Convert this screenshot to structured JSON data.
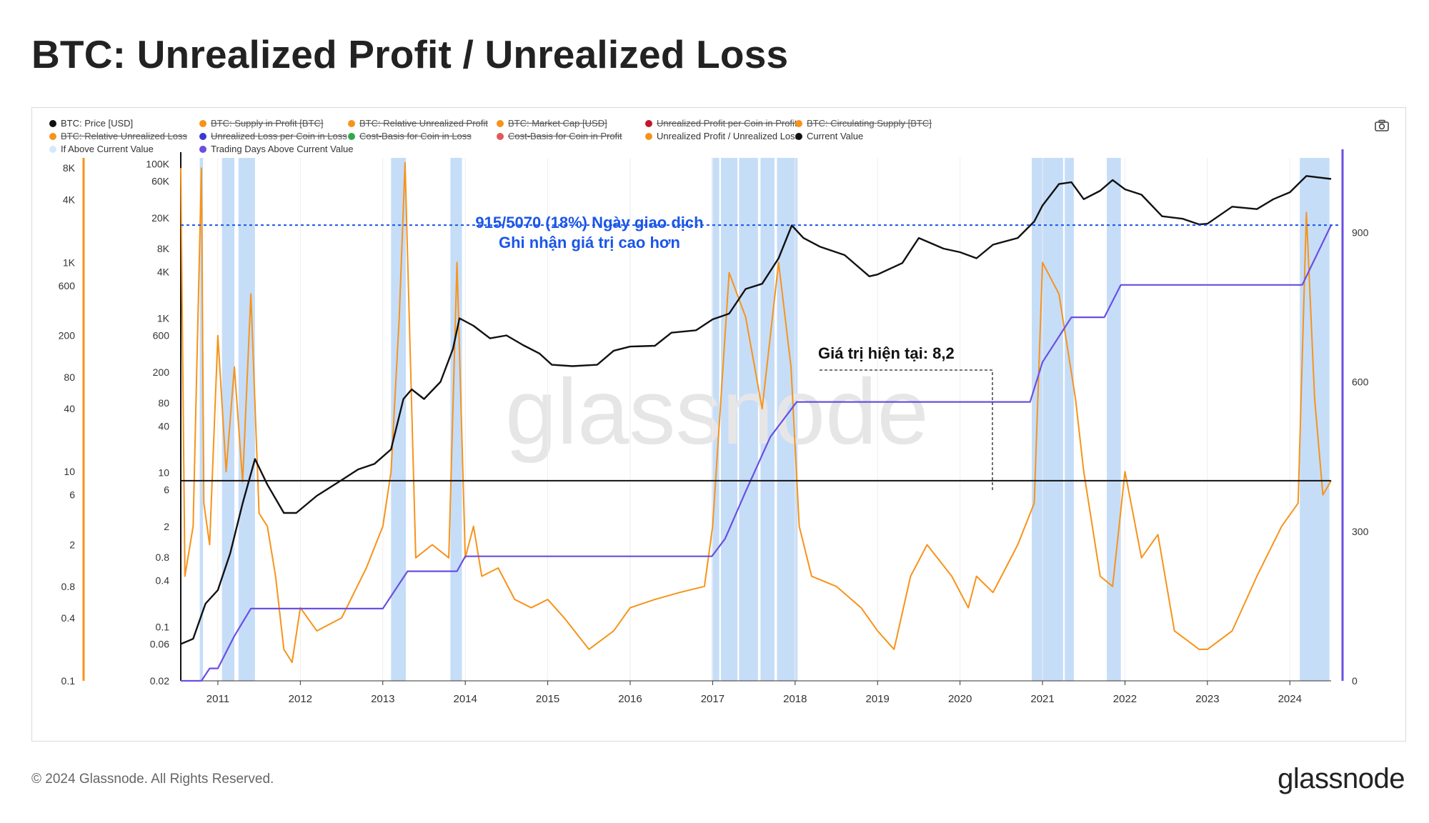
{
  "title": "BTC: Unrealized Profit / Unrealized Loss",
  "legend": [
    {
      "label": "BTC: Price [USD]",
      "color": "#111111",
      "off": false
    },
    {
      "label": "BTC: Supply in Profit [BTC]",
      "color": "#f7931a",
      "off": true
    },
    {
      "label": "BTC: Relative Unrealized Profit",
      "color": "#f7931a",
      "off": true
    },
    {
      "label": "BTC: Market Cap [USD]",
      "color": "#f7931a",
      "off": true
    },
    {
      "label": "Unrealized Profit per Coin in Profit",
      "color": "#c0182a",
      "off": true
    },
    {
      "label": "BTC: Circulating Supply [BTC]",
      "color": "#f7931a",
      "off": true
    },
    {
      "label": "BTC: Relative Unrealized Loss",
      "color": "#f7931a",
      "off": true
    },
    {
      "label": "Unrealized Loss per Coin in Loss",
      "color": "#3b3bd1",
      "off": true
    },
    {
      "label": "Cost-Basis for Coin in Loss",
      "color": "#2fa84f",
      "off": true
    },
    {
      "label": "Cost-Basis for Coin in Profit",
      "color": "#e05a5a",
      "off": true
    },
    {
      "label": "Unrealized Profit / Unrealized Loss",
      "color": "#f7931a",
      "off": false
    },
    {
      "label": "Current Value",
      "color": "#111111",
      "off": false
    },
    {
      "label": "If Above Current Value",
      "color": "#d6e8ff",
      "off": false
    },
    {
      "label": "Trading Days Above Current Value",
      "color": "#6a4fe0",
      "off": false
    }
  ],
  "annotations": {
    "ratio_line1": "915/5070 (18%) Ngày giao dịch",
    "ratio_line2": "Ghi nhận giá trị cao hơn",
    "current_value": "Giá trị hiện tại: 8,2"
  },
  "watermark": "glassnode",
  "footer": {
    "copyright": "© 2024 Glassnode. All Rights Reserved.",
    "logo": "glassnode"
  },
  "colors": {
    "price": "#111111",
    "ratio": "#f7931a",
    "days": "#6a4fe0",
    "highlight": "#bcd7f7",
    "ratio_line": "#1a56e8",
    "current": "#111111"
  },
  "chart_data": {
    "type": "line",
    "x_ticks": [
      "2011",
      "2012",
      "2013",
      "2014",
      "2015",
      "2016",
      "2017",
      "2018",
      "2019",
      "2020",
      "2021",
      "2022",
      "2023",
      "2024"
    ],
    "x_range": [
      2010.55,
      2024.5
    ],
    "axes": {
      "ratio_ticks": [
        "8K",
        "4K",
        "1K",
        "600",
        "200",
        "80",
        "40",
        "10",
        "6",
        "2",
        "0.8",
        "0.4",
        "0.1"
      ],
      "ratio_range": [
        0.1,
        10000
      ],
      "price_ticks": [
        "100K",
        "60K",
        "20K",
        "8K",
        "4K",
        "1K",
        "600",
        "200",
        "80",
        "40",
        "10",
        "6",
        "2",
        "0.8",
        "0.4",
        "0.1",
        "0.06",
        "0.02"
      ],
      "price_range": [
        0.02,
        120000
      ],
      "days_ticks": [
        "900",
        "600",
        "300",
        "0"
      ],
      "days_range": [
        0,
        1050
      ]
    },
    "current_value": 8.2,
    "ratio_threshold_days": 915,
    "total_days": 5070,
    "series": [
      {
        "name": "BTC: Price [USD]",
        "x": [
          2010.55,
          2010.7,
          2010.85,
          2011.0,
          2011.15,
          2011.3,
          2011.45,
          2011.6,
          2011.8,
          2011.95,
          2012.2,
          2012.5,
          2012.7,
          2012.9,
          2013.1,
          2013.25,
          2013.35,
          2013.5,
          2013.7,
          2013.85,
          2013.93,
          2014.1,
          2014.3,
          2014.5,
          2014.7,
          2014.9,
          2015.05,
          2015.3,
          2015.6,
          2015.8,
          2016.0,
          2016.3,
          2016.5,
          2016.8,
          2017.0,
          2017.2,
          2017.4,
          2017.6,
          2017.8,
          2017.96,
          2018.1,
          2018.3,
          2018.6,
          2018.9,
          2019.0,
          2019.3,
          2019.5,
          2019.8,
          2020.0,
          2020.2,
          2020.4,
          2020.7,
          2020.9,
          2021.0,
          2021.2,
          2021.35,
          2021.5,
          2021.7,
          2021.85,
          2022.0,
          2022.2,
          2022.45,
          2022.7,
          2022.9,
          2023.0,
          2023.3,
          2023.6,
          2023.8,
          2024.0,
          2024.2,
          2024.5
        ],
        "values": [
          0.06,
          0.07,
          0.2,
          0.3,
          0.9,
          4,
          15,
          7,
          3,
          3,
          5,
          8,
          11,
          13,
          20,
          90,
          120,
          90,
          150,
          400,
          1000,
          800,
          550,
          600,
          450,
          350,
          250,
          240,
          250,
          380,
          430,
          440,
          650,
          700,
          970,
          1150,
          2400,
          2800,
          6000,
          16000,
          11000,
          8500,
          6600,
          3500,
          3700,
          5200,
          11000,
          8000,
          7200,
          6000,
          9000,
          11000,
          18000,
          29000,
          55000,
          58000,
          35000,
          45000,
          62000,
          47000,
          40000,
          21000,
          19500,
          16500,
          16800,
          28000,
          26000,
          35000,
          43000,
          70000,
          64000
        ]
      },
      {
        "name": "Unrealized Profit / Unrealized Loss",
        "x": [
          2010.55,
          2010.6,
          2010.7,
          2010.8,
          2010.83,
          2010.9,
          2011.0,
          2011.1,
          2011.2,
          2011.3,
          2011.4,
          2011.5,
          2011.6,
          2011.7,
          2011.8,
          2011.9,
          2012.0,
          2012.2,
          2012.5,
          2012.8,
          2013.0,
          2013.1,
          2013.2,
          2013.27,
          2013.4,
          2013.6,
          2013.8,
          2013.9,
          2014.0,
          2014.1,
          2014.2,
          2014.4,
          2014.6,
          2014.8,
          2015.0,
          2015.2,
          2015.5,
          2015.8,
          2016.0,
          2016.3,
          2016.6,
          2016.9,
          2017.0,
          2017.2,
          2017.4,
          2017.6,
          2017.8,
          2017.95,
          2018.05,
          2018.2,
          2018.5,
          2018.8,
          2019.0,
          2019.2,
          2019.4,
          2019.6,
          2019.9,
          2020.1,
          2020.2,
          2020.4,
          2020.7,
          2020.9,
          2021.0,
          2021.2,
          2021.4,
          2021.5,
          2021.7,
          2021.85,
          2022.0,
          2022.2,
          2022.4,
          2022.6,
          2022.9,
          2023.0,
          2023.3,
          2023.6,
          2023.9,
          2024.1,
          2024.2,
          2024.3,
          2024.4,
          2024.5
        ],
        "values": [
          8000,
          1,
          3,
          8000,
          5,
          2,
          200,
          10,
          100,
          8,
          500,
          4,
          3,
          1,
          0.2,
          0.15,
          0.5,
          0.3,
          0.4,
          1.2,
          3,
          10,
          300,
          9000,
          1.5,
          2,
          1.5,
          1000,
          1.5,
          3,
          1,
          1.2,
          0.6,
          0.5,
          0.6,
          0.4,
          0.2,
          0.3,
          0.5,
          0.6,
          0.7,
          0.8,
          3,
          800,
          300,
          40,
          1000,
          100,
          3,
          1,
          0.8,
          0.5,
          0.3,
          0.2,
          1,
          2,
          1,
          0.5,
          1,
          0.7,
          2,
          5,
          1000,
          500,
          50,
          10,
          1,
          0.8,
          10,
          1.5,
          2.5,
          0.3,
          0.2,
          0.2,
          0.3,
          1,
          3,
          5,
          3000,
          50,
          6,
          8.2
        ]
      },
      {
        "name": "Trading Days Above Current Value",
        "x": [
          2010.55,
          2010.8,
          2010.9,
          2011.0,
          2011.2,
          2011.4,
          2012.5,
          2013.0,
          2013.1,
          2013.3,
          2013.9,
          2014.0,
          2015.0,
          2016.0,
          2016.99,
          2017.15,
          2017.4,
          2017.7,
          2018.02,
          2019.0,
          2020.0,
          2020.85,
          2021.0,
          2021.35,
          2021.75,
          2021.95,
          2023.0,
          2024.15,
          2024.5
        ],
        "values": [
          0,
          0,
          25,
          25,
          90,
          145,
          145,
          145,
          170,
          220,
          220,
          250,
          250,
          250,
          250,
          285,
          380,
          490,
          560,
          560,
          560,
          560,
          640,
          730,
          730,
          795,
          795,
          795,
          915
        ]
      }
    ],
    "highlight_periods": [
      [
        2010.78,
        2010.82
      ],
      [
        2011.05,
        2011.2
      ],
      [
        2011.25,
        2011.45
      ],
      [
        2013.1,
        2013.28
      ],
      [
        2013.82,
        2013.96
      ],
      [
        2016.99,
        2017.08
      ],
      [
        2017.1,
        2017.3
      ],
      [
        2017.32,
        2017.55
      ],
      [
        2017.58,
        2017.75
      ],
      [
        2017.78,
        2018.03
      ],
      [
        2020.87,
        2021.25
      ],
      [
        2021.27,
        2021.38
      ],
      [
        2021.78,
        2021.95
      ],
      [
        2024.12,
        2024.48
      ]
    ]
  }
}
